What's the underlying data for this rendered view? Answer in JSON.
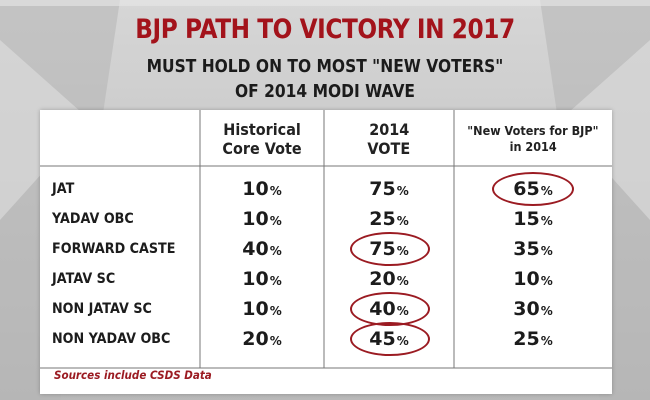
{
  "title": "BJP PATH TO VICTORY IN 2017",
  "subtitle_line1": "MUST HOLD ON TO MOST \"NEW VOTERS\"",
  "subtitle_line2": "OF 2014 MODI WAVE",
  "table": {
    "headers": [
      [
        "Historical",
        "Core Vote"
      ],
      [
        "2014",
        "VOTE"
      ],
      [
        "\"New Voters for BJP\"",
        "in 2014"
      ]
    ],
    "rows": [
      {
        "label": "JAT",
        "historical": "10",
        "vote2014": "75",
        "new_voters": "65"
      },
      {
        "label": "YADAV OBC",
        "historical": "10",
        "vote2014": "25",
        "new_voters": "15"
      },
      {
        "label": "FORWARD CASTE",
        "historical": "40",
        "vote2014": "75",
        "new_voters": "35"
      },
      {
        "label": "JATAV SC",
        "historical": "10",
        "vote2014": "20",
        "new_voters": "10"
      },
      {
        "label": "NON JATAV SC",
        "historical": "10",
        "vote2014": "40",
        "new_voters": "30"
      },
      {
        "label": "NON YADAV OBC",
        "historical": "20",
        "vote2014": "45",
        "new_voters": "25"
      }
    ],
    "unit": "%",
    "circled_cells": [
      {
        "row": "JAT",
        "column": "new_voters"
      },
      {
        "row": "FORWARD CASTE",
        "column": "vote2014"
      },
      {
        "row": "NON JATAV SC",
        "column": "vote2014"
      },
      {
        "row": "NON YADAV OBC",
        "column": "vote2014"
      }
    ]
  },
  "footnote": "Sources include CSDS Data",
  "colors": {
    "title": "#a3131b",
    "highlight_circle": "#9b1b22",
    "footnote": "#9b1b22",
    "background": "#cccccc",
    "table_background": "#ffffff"
  }
}
